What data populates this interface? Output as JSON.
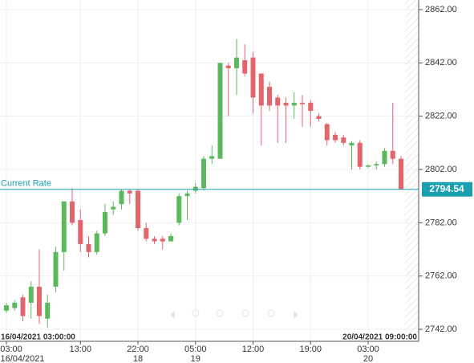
{
  "chart_data": {
    "type": "candlestick",
    "colors": {
      "up": "#5cb85c",
      "down": "#e5636b"
    },
    "ylim": [
      2737.5,
      2865.6
    ],
    "yticks": [
      {
        "value": 2742,
        "label": "2742.00"
      },
      {
        "value": 2762,
        "label": "2762.00"
      },
      {
        "value": 2782,
        "label": "2782.00"
      },
      {
        "value": 2802,
        "label": "2802.00"
      },
      {
        "value": 2822,
        "label": "2822.00"
      },
      {
        "value": 2842,
        "label": "2842.00"
      },
      {
        "value": 2862,
        "label": "2862.00"
      }
    ],
    "grid": true,
    "categories": [
      "03:00",
      null,
      null,
      null,
      null,
      null,
      null,
      null,
      null,
      "13:00",
      null,
      null,
      null,
      null,
      null,
      null,
      "22:00",
      null,
      null,
      null,
      null,
      null,
      null,
      "05:00",
      null,
      null,
      null,
      null,
      null,
      null,
      "12:00",
      null,
      null,
      null,
      null,
      null,
      null,
      "19:00",
      null,
      null,
      null,
      null,
      null,
      null,
      "03:00",
      null,
      null,
      null,
      null
    ],
    "dates": [
      "16/04/2021",
      null,
      null,
      null,
      null,
      null,
      null,
      null,
      null,
      null,
      null,
      null,
      null,
      null,
      null,
      null,
      "18",
      null,
      null,
      null,
      null,
      null,
      null,
      "19",
      null,
      null,
      null,
      null,
      null,
      null,
      null,
      null,
      null,
      null,
      null,
      null,
      null,
      null,
      null,
      null,
      null,
      null,
      null,
      null,
      "20",
      null,
      null,
      null,
      null
    ],
    "open": [
      2749,
      2750,
      2754,
      2752,
      2758,
      2746,
      2758,
      2771,
      2790,
      2783,
      2774,
      2771,
      2778,
      2787,
      2789,
      2794,
      2794,
      2780,
      2776,
      2776,
      2775,
      2782,
      2792,
      2794,
      2795,
      2806,
      2806,
      2841,
      2840,
      2843,
      2844,
      2838,
      2833,
      2829,
      2827,
      2826,
      2827,
      2827,
      2822,
      2819,
      2815,
      2814,
      2811,
      2812,
      2803,
      2803.5,
      2804,
      2809,
      2806
    ],
    "high": [
      2752,
      2753,
      2755,
      2760,
      2772,
      2755,
      2773,
      2790,
      2795,
      2787,
      2777,
      2779,
      2789,
      2790,
      2794.5,
      2794.5,
      2794.5,
      2782,
      2777,
      2777,
      2778,
      2793,
      2794,
      2797,
      2807,
      2811,
      2842,
      2842,
      2851,
      2849,
      2846,
      2838,
      2835,
      2830,
      2829,
      2831,
      2830,
      2828,
      2823,
      2819.5,
      2816,
      2815,
      2812.5,
      2813,
      2804,
      2805,
      2810,
      2827,
      2807
    ],
    "low": [
      2748,
      2749,
      2745,
      2746,
      2744,
      2742.5,
      2756,
      2764,
      2781,
      2771,
      2769,
      2770,
      2777,
      2785,
      2787,
      2789,
      2779,
      2775,
      2774,
      2772,
      2775,
      2781,
      2783,
      2793,
      2794,
      2804,
      2806,
      2822,
      2830,
      2837,
      2823,
      2811,
      2824,
      2812,
      2812,
      2821,
      2818,
      2818,
      2820,
      2811,
      2812,
      2811,
      2802,
      2802,
      2802.5,
      2802,
      2803,
      2804,
      2794.5
    ],
    "close": [
      2751,
      2752,
      2747,
      2758,
      2747,
      2752,
      2771,
      2790,
      2782,
      2774,
      2771,
      2778,
      2786,
      2788,
      2794,
      2793,
      2780,
      2776,
      2775,
      2775,
      2777,
      2792,
      2793,
      2795.5,
      2806,
      2807,
      2842,
      2840,
      2844,
      2838,
      2829,
      2826,
      2826,
      2826,
      2826,
      2827,
      2826.5,
      2824,
      2821,
      2813,
      2813,
      2812,
      2812,
      2803,
      2803.5,
      2804,
      2809,
      2806,
      2794.5
    ],
    "current_rate": {
      "label": "Current Rate",
      "value": 2794.54
    },
    "start_label": "16/04/2021 03:00:00",
    "end_label": "20/04/2021 09:00:00"
  }
}
